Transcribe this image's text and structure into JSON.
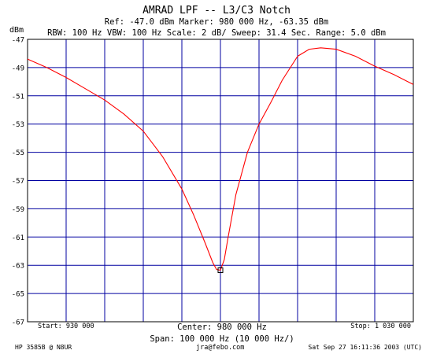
{
  "header": {
    "title": "AMRAD LPF -- L3/C3 Notch",
    "line2": "Ref: -47.0 dBm  Marker: 980 000 Hz, -63.35 dBm",
    "line3": "RBW: 100 Hz  VBW: 100 Hz  Scale: 2 dB/  Sweep: 31.4 Sec.  Range: 5.0 dBm"
  },
  "footer": {
    "start": "Start: 930 000",
    "center": "Center: 980 000 Hz",
    "stop": "Stop: 1 030 000",
    "span": "Span: 100 000 Hz (10 000 Hz/)",
    "instrument": "HP 3585B @ N8UR",
    "email": "jra@febo.com",
    "timestamp": "Sat Sep 27 16:11:36 2003 (UTC)"
  },
  "colors": {
    "trace": "#ff0000",
    "grid": "#0000a0",
    "marker": "#000000"
  },
  "chart_data": {
    "type": "line",
    "ylabel": "dBm",
    "ylim": [
      -67,
      -47
    ],
    "xlim": [
      930000,
      1030000
    ],
    "yticks": [
      "-47",
      "-49",
      "-51",
      "-53",
      "-55",
      "-57",
      "-59",
      "-61",
      "-63",
      "-65",
      "-67"
    ],
    "x": [
      930000,
      935000,
      940000,
      945000,
      950000,
      955000,
      960000,
      965000,
      970000,
      973000,
      976000,
      978000,
      979000,
      980000,
      981000,
      982000,
      984000,
      987000,
      990000,
      993000,
      996000,
      1000000,
      1003000,
      1006000,
      1010000,
      1015000,
      1020000,
      1025000,
      1030000
    ],
    "y": [
      -48.4,
      -49.0,
      -49.7,
      -50.5,
      -51.3,
      -52.3,
      -53.5,
      -55.3,
      -57.6,
      -59.4,
      -61.4,
      -62.8,
      -63.3,
      -63.35,
      -62.6,
      -61.0,
      -58.0,
      -55.0,
      -53.0,
      -51.5,
      -49.9,
      -48.2,
      -47.7,
      -47.6,
      -47.7,
      -48.2,
      -48.9,
      -49.5,
      -50.2
    ],
    "marker": {
      "x": 980000,
      "y": -63.35
    }
  }
}
